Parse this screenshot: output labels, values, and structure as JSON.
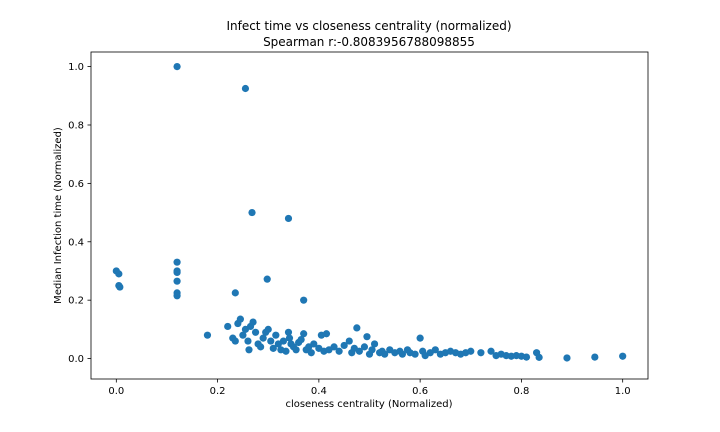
{
  "chart_data": {
    "type": "scatter",
    "title": "Infect time vs closeness centrality (normalized)",
    "subtitle": "Spearman r:-0.8083956788098855",
    "xlabel": "closeness centrality (Normalized)",
    "ylabel": "Median Infection time (Normalized)",
    "xlim": [
      -0.05,
      1.05
    ],
    "ylim": [
      -0.07,
      1.05
    ],
    "x_ticks": [
      0.0,
      0.2,
      0.4,
      0.6,
      0.8,
      1.0
    ],
    "y_ticks": [
      0.0,
      0.2,
      0.4,
      0.6,
      0.8,
      1.0
    ],
    "x_tick_labels": [
      "0.0",
      "0.2",
      "0.4",
      "0.6",
      "0.8",
      "1.0"
    ],
    "y_tick_labels": [
      "0.0",
      "0.2",
      "0.4",
      "0.6",
      "0.8",
      "1.0"
    ],
    "grid": false,
    "marker_color": "#1f77b4",
    "points": [
      [
        0.0,
        0.3
      ],
      [
        0.005,
        0.29
      ],
      [
        0.005,
        0.25
      ],
      [
        0.007,
        0.245
      ],
      [
        0.12,
        1.0
      ],
      [
        0.12,
        0.33
      ],
      [
        0.12,
        0.3
      ],
      [
        0.12,
        0.295
      ],
      [
        0.12,
        0.265
      ],
      [
        0.12,
        0.225
      ],
      [
        0.12,
        0.215
      ],
      [
        0.255,
        0.925
      ],
      [
        0.268,
        0.5
      ],
      [
        0.34,
        0.48
      ],
      [
        0.235,
        0.225
      ],
      [
        0.298,
        0.272
      ],
      [
        0.37,
        0.2
      ],
      [
        0.18,
        0.08
      ],
      [
        0.22,
        0.11
      ],
      [
        0.23,
        0.07
      ],
      [
        0.235,
        0.06
      ],
      [
        0.24,
        0.12
      ],
      [
        0.245,
        0.135
      ],
      [
        0.25,
        0.08
      ],
      [
        0.255,
        0.1
      ],
      [
        0.26,
        0.06
      ],
      [
        0.262,
        0.03
      ],
      [
        0.265,
        0.11
      ],
      [
        0.27,
        0.125
      ],
      [
        0.275,
        0.09
      ],
      [
        0.28,
        0.05
      ],
      [
        0.285,
        0.04
      ],
      [
        0.29,
        0.07
      ],
      [
        0.295,
        0.09
      ],
      [
        0.3,
        0.1
      ],
      [
        0.305,
        0.06
      ],
      [
        0.31,
        0.035
      ],
      [
        0.315,
        0.08
      ],
      [
        0.32,
        0.05
      ],
      [
        0.325,
        0.03
      ],
      [
        0.33,
        0.06
      ],
      [
        0.335,
        0.025
      ],
      [
        0.34,
        0.09
      ],
      [
        0.342,
        0.07
      ],
      [
        0.345,
        0.05
      ],
      [
        0.35,
        0.04
      ],
      [
        0.355,
        0.03
      ],
      [
        0.36,
        0.055
      ],
      [
        0.365,
        0.065
      ],
      [
        0.37,
        0.085
      ],
      [
        0.375,
        0.03
      ],
      [
        0.38,
        0.04
      ],
      [
        0.385,
        0.02
      ],
      [
        0.39,
        0.05
      ],
      [
        0.4,
        0.035
      ],
      [
        0.405,
        0.08
      ],
      [
        0.41,
        0.025
      ],
      [
        0.415,
        0.085
      ],
      [
        0.42,
        0.03
      ],
      [
        0.43,
        0.04
      ],
      [
        0.44,
        0.025
      ],
      [
        0.45,
        0.045
      ],
      [
        0.46,
        0.06
      ],
      [
        0.465,
        0.02
      ],
      [
        0.47,
        0.035
      ],
      [
        0.475,
        0.105
      ],
      [
        0.48,
        0.025
      ],
      [
        0.49,
        0.04
      ],
      [
        0.495,
        0.075
      ],
      [
        0.5,
        0.015
      ],
      [
        0.505,
        0.03
      ],
      [
        0.51,
        0.05
      ],
      [
        0.52,
        0.02
      ],
      [
        0.525,
        0.025
      ],
      [
        0.53,
        0.015
      ],
      [
        0.54,
        0.03
      ],
      [
        0.55,
        0.02
      ],
      [
        0.56,
        0.025
      ],
      [
        0.565,
        0.015
      ],
      [
        0.575,
        0.03
      ],
      [
        0.58,
        0.02
      ],
      [
        0.59,
        0.015
      ],
      [
        0.6,
        0.07
      ],
      [
        0.605,
        0.025
      ],
      [
        0.61,
        0.01
      ],
      [
        0.62,
        0.02
      ],
      [
        0.63,
        0.03
      ],
      [
        0.64,
        0.015
      ],
      [
        0.65,
        0.02
      ],
      [
        0.66,
        0.025
      ],
      [
        0.67,
        0.02
      ],
      [
        0.68,
        0.015
      ],
      [
        0.69,
        0.02
      ],
      [
        0.7,
        0.025
      ],
      [
        0.72,
        0.02
      ],
      [
        0.74,
        0.025
      ],
      [
        0.75,
        0.01
      ],
      [
        0.76,
        0.015
      ],
      [
        0.77,
        0.01
      ],
      [
        0.78,
        0.008
      ],
      [
        0.79,
        0.01
      ],
      [
        0.8,
        0.008
      ],
      [
        0.81,
        0.005
      ],
      [
        0.83,
        0.02
      ],
      [
        0.835,
        0.004
      ],
      [
        0.89,
        0.002
      ],
      [
        0.945,
        0.005
      ],
      [
        1.0,
        0.008
      ]
    ]
  }
}
